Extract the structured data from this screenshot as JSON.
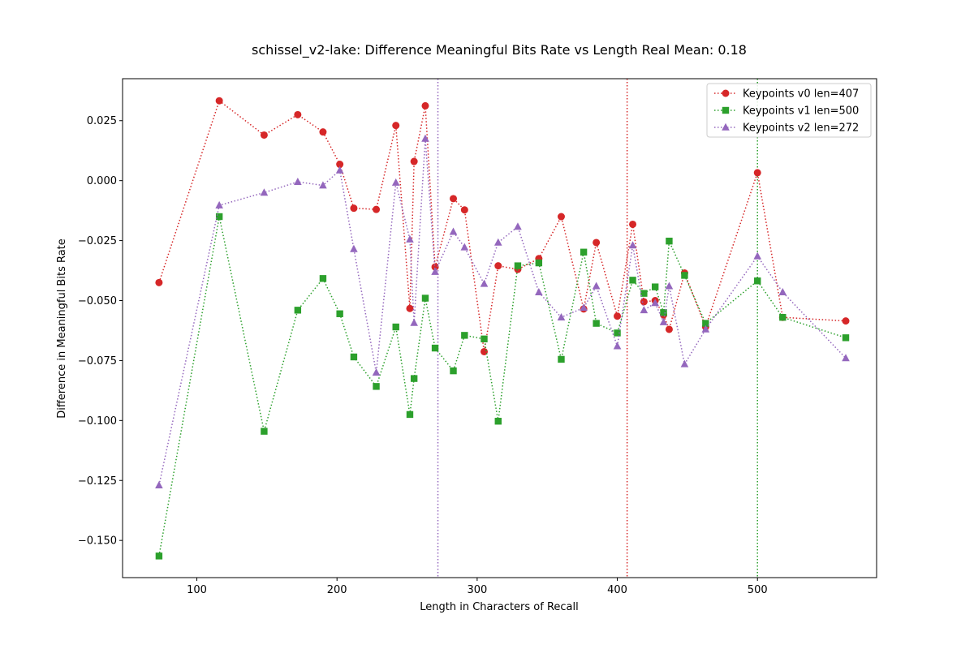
{
  "chart_data": {
    "type": "line",
    "title": "schissel_v2-lake: Difference Meaningful Bits Rate vs Length Real Mean: 0.18",
    "xlabel": "Length in Characters of Recall",
    "ylabel": "Difference in Meaningful Bits Rate",
    "xlim": [
      47,
      585
    ],
    "ylim": [
      -0.1655,
      0.0425
    ],
    "xticks": [
      100,
      200,
      300,
      400,
      500
    ],
    "xtick_labels": [
      "100",
      "200",
      "300",
      "400",
      "500"
    ],
    "yticks": [
      0.025,
      0.0,
      -0.025,
      -0.05,
      -0.075,
      -0.1,
      -0.125,
      -0.15
    ],
    "ytick_labels": [
      "0.025",
      "0.000",
      "−0.025",
      "−0.050",
      "−0.075",
      "−0.100",
      "−0.125",
      "−0.150"
    ],
    "grid": false,
    "legend_position": "top-right",
    "series": [
      {
        "name": "Keypoints v0 len=407",
        "color": "#d62728",
        "marker": "circle",
        "vline": 407,
        "x": [
          73,
          116,
          148,
          172,
          190,
          202,
          212,
          228,
          242,
          252,
          255,
          263,
          270,
          283,
          291,
          305,
          315,
          329,
          344,
          360,
          376,
          385,
          400,
          411,
          419,
          427,
          433,
          437,
          448,
          463,
          500,
          518,
          563
        ],
        "y": [
          -0.0425,
          0.0333,
          0.019,
          0.0275,
          0.0203,
          0.0068,
          -0.0115,
          -0.012,
          0.023,
          -0.0533,
          0.008,
          0.0312,
          -0.036,
          -0.0075,
          -0.0122,
          -0.0713,
          -0.0355,
          -0.037,
          -0.0325,
          -0.015,
          -0.0535,
          -0.0258,
          -0.0565,
          -0.0182,
          -0.0505,
          -0.05,
          -0.056,
          -0.062,
          -0.0385,
          -0.061,
          0.0033,
          -0.057,
          -0.0585
        ]
      },
      {
        "name": "Keypoints v1 len=500",
        "color": "#2ca02c",
        "marker": "square",
        "vline": 500,
        "x": [
          73,
          116,
          148,
          172,
          190,
          202,
          212,
          228,
          242,
          252,
          255,
          263,
          270,
          283,
          291,
          305,
          315,
          329,
          344,
          360,
          376,
          385,
          400,
          411,
          419,
          427,
          433,
          437,
          448,
          463,
          500,
          518,
          563
        ],
        "y": [
          -0.1565,
          -0.015,
          -0.1045,
          -0.054,
          -0.0408,
          -0.0555,
          -0.0735,
          -0.0858,
          -0.061,
          -0.0975,
          -0.0825,
          -0.049,
          -0.0698,
          -0.0793,
          -0.0645,
          -0.066,
          -0.1003,
          -0.0355,
          -0.0343,
          -0.0745,
          -0.0298,
          -0.0595,
          -0.0635,
          -0.0415,
          -0.047,
          -0.0443,
          -0.055,
          -0.0252,
          -0.0395,
          -0.0595,
          -0.0418,
          -0.057,
          -0.0655
        ]
      },
      {
        "name": "Keypoints v2 len=272",
        "color": "#9467bd",
        "marker": "triangle",
        "vline": 272,
        "x": [
          73,
          116,
          148,
          172,
          190,
          202,
          212,
          228,
          242,
          252,
          255,
          263,
          270,
          283,
          291,
          305,
          315,
          329,
          344,
          360,
          376,
          385,
          400,
          411,
          419,
          427,
          433,
          437,
          448,
          463,
          500,
          518,
          563
        ],
        "y": [
          -0.127,
          -0.0103,
          -0.005,
          -0.0005,
          -0.002,
          0.0043,
          -0.0285,
          -0.08,
          -0.0008,
          -0.0245,
          -0.0593,
          0.0175,
          -0.038,
          -0.0213,
          -0.0278,
          -0.043,
          -0.0258,
          -0.0192,
          -0.0465,
          -0.057,
          -0.053,
          -0.044,
          -0.069,
          -0.027,
          -0.054,
          -0.051,
          -0.059,
          -0.044,
          -0.0765,
          -0.062,
          -0.0315,
          -0.0465,
          -0.074
        ]
      }
    ]
  }
}
